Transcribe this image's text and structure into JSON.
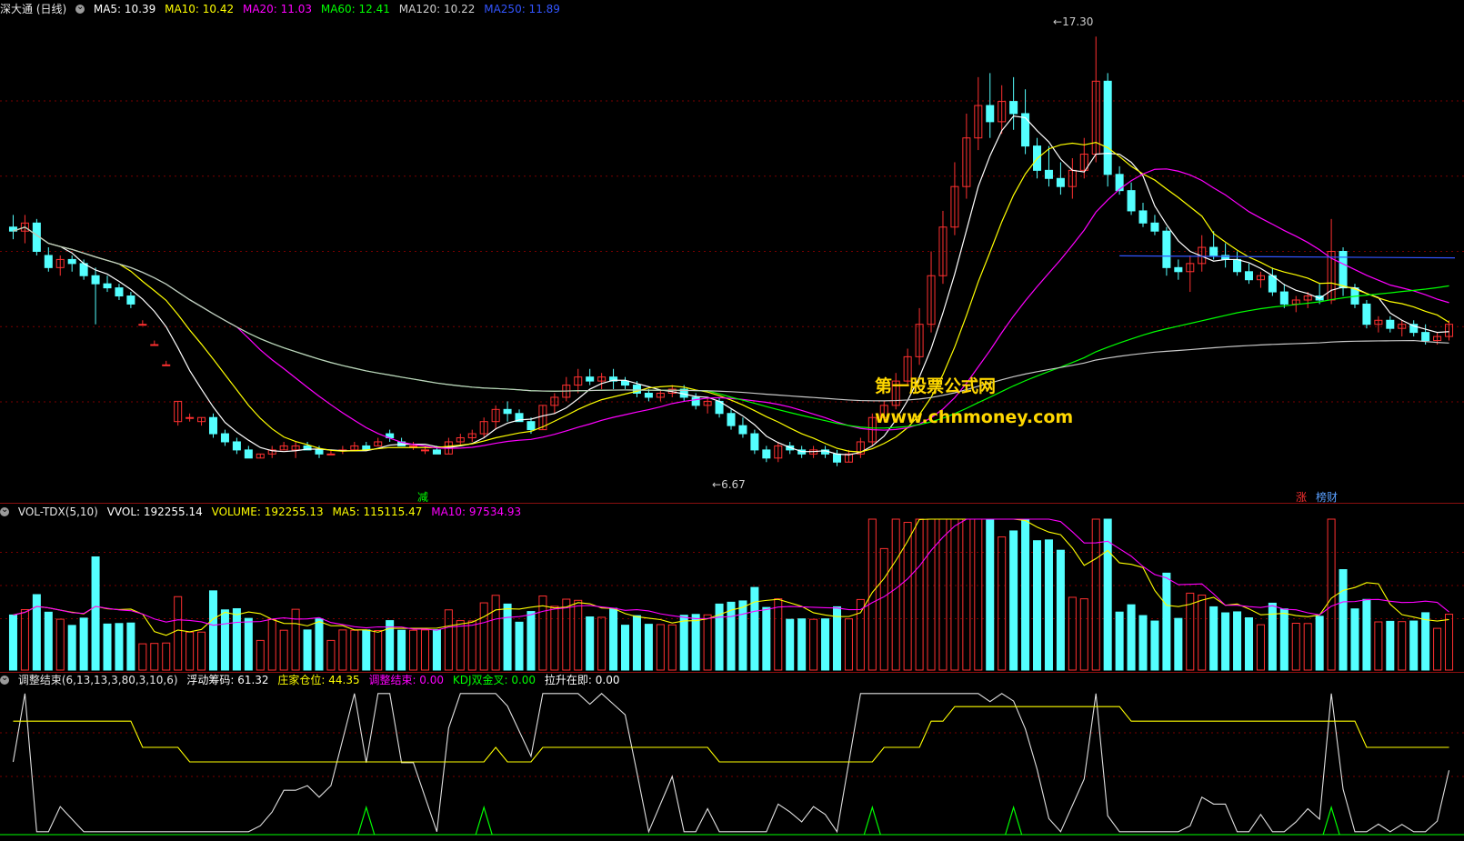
{
  "main_panel": {
    "title": "深大通 (日线)",
    "ma_labels": [
      {
        "text": "MA5: 10.39",
        "color": "#ffffff"
      },
      {
        "text": "MA10: 10.42",
        "color": "#ffff00"
      },
      {
        "text": "MA20: 11.03",
        "color": "#ff00ff"
      },
      {
        "text": "MA60: 12.41",
        "color": "#00ff00"
      },
      {
        "text": "MA120: 10.22",
        "color": "#d0d0d0"
      },
      {
        "text": "MA250: 11.89",
        "color": "#3355ff"
      }
    ],
    "high_label": "17.30",
    "low_label": "6.67",
    "marker_jian": "减",
    "marker_zhang": "涨",
    "marker_bangcai": "榜财",
    "watermark_cn": "第一股票公式网",
    "watermark_url": "www.chnmoney.com"
  },
  "volume_panel": {
    "title": "VOL-TDX(5,10)",
    "labels": [
      {
        "text": "VVOL: 192255.14",
        "color": "#ffffff"
      },
      {
        "text": "VOLUME: 192255.13",
        "color": "#ffff00"
      },
      {
        "text": "MA5: 115115.47",
        "color": "#ffff00"
      },
      {
        "text": "MA10: 97534.93",
        "color": "#ff00ff"
      }
    ]
  },
  "indicator_panel": {
    "title": "调整结束(6,13,13,3,80,3,10,6)",
    "labels": [
      {
        "text": "浮动筹码: 61.32",
        "color": "#ffffff"
      },
      {
        "text": "庄家仓位: 44.35",
        "color": "#ffff00"
      },
      {
        "text": "调整结束: 0.00",
        "color": "#ff00ff"
      },
      {
        "text": "KDJ双金叉: 0.00",
        "color": "#00ff00"
      },
      {
        "text": "拉升在即: 0.00",
        "color": "#ffffff"
      }
    ]
  },
  "colors": {
    "up": "#ff3030",
    "down": "#54ffff",
    "grid": "#7a0000",
    "ma5": "#ffffff",
    "ma10": "#ffff00",
    "ma20": "#ff00ff",
    "ma60": "#00ff00",
    "ma120": "#c8c8c8",
    "ma250": "#3355ff"
  },
  "chart_data": [
    {
      "type": "candlestick",
      "title": "深大通 (日线)",
      "ylim": [
        6.2,
        17.8
      ],
      "series_ohlc": [
        [
          12.6,
          12.9,
          12.3,
          12.5
        ],
        [
          12.5,
          12.9,
          12.2,
          12.7
        ],
        [
          12.7,
          12.8,
          11.9,
          12.0
        ],
        [
          11.9,
          12.1,
          11.5,
          11.6
        ],
        [
          11.6,
          11.9,
          11.4,
          11.8
        ],
        [
          11.8,
          11.9,
          11.5,
          11.7
        ],
        [
          11.7,
          11.8,
          11.3,
          11.4
        ],
        [
          11.4,
          11.6,
          10.2,
          11.2
        ],
        [
          11.2,
          11.4,
          11.0,
          11.1
        ],
        [
          11.1,
          11.2,
          10.8,
          10.9
        ],
        [
          10.9,
          11.0,
          10.6,
          10.7
        ],
        [
          10.2,
          10.3,
          10.2,
          10.2
        ],
        [
          9.7,
          9.8,
          9.7,
          9.7
        ],
        [
          9.2,
          9.3,
          9.2,
          9.2
        ],
        [
          7.8,
          8.3,
          7.7,
          8.3
        ],
        [
          7.9,
          8.0,
          7.8,
          7.9
        ],
        [
          7.8,
          7.9,
          7.7,
          7.9
        ],
        [
          7.9,
          8.0,
          7.4,
          7.5
        ],
        [
          7.5,
          7.6,
          7.2,
          7.3
        ],
        [
          7.3,
          7.4,
          7.0,
          7.1
        ],
        [
          7.1,
          7.2,
          6.9,
          6.9
        ],
        [
          6.9,
          7.0,
          6.9,
          7.0
        ],
        [
          7.0,
          7.2,
          6.9,
          7.1
        ],
        [
          7.1,
          7.3,
          7.1,
          7.2
        ],
        [
          7.1,
          7.3,
          6.9,
          7.2
        ],
        [
          7.2,
          7.3,
          7.1,
          7.1
        ],
        [
          7.1,
          7.2,
          6.9,
          7.0
        ],
        [
          7.0,
          7.1,
          7.0,
          7.0
        ],
        [
          7.1,
          7.2,
          7.0,
          7.1
        ],
        [
          7.1,
          7.3,
          7.1,
          7.2
        ],
        [
          7.2,
          7.3,
          7.1,
          7.1
        ],
        [
          7.2,
          7.4,
          7.2,
          7.3
        ],
        [
          7.5,
          7.6,
          7.3,
          7.4
        ],
        [
          7.3,
          7.4,
          7.2,
          7.2
        ],
        [
          7.2,
          7.3,
          7.1,
          7.2
        ],
        [
          7.1,
          7.2,
          7.0,
          7.1
        ],
        [
          7.1,
          7.2,
          7.0,
          7.0
        ],
        [
          7.0,
          7.4,
          7.0,
          7.3
        ],
        [
          7.3,
          7.5,
          7.2,
          7.4
        ],
        [
          7.4,
          7.6,
          7.3,
          7.5
        ],
        [
          7.5,
          7.9,
          7.4,
          7.8
        ],
        [
          7.8,
          8.2,
          7.6,
          8.1
        ],
        [
          8.1,
          8.3,
          7.8,
          8.0
        ],
        [
          8.0,
          8.1,
          7.8,
          7.8
        ],
        [
          7.8,
          7.9,
          7.5,
          7.6
        ],
        [
          7.6,
          8.2,
          7.6,
          8.2
        ],
        [
          8.2,
          8.5,
          8.0,
          8.4
        ],
        [
          8.4,
          8.9,
          8.3,
          8.7
        ],
        [
          8.7,
          9.1,
          8.5,
          8.9
        ],
        [
          8.9,
          9.1,
          8.7,
          8.8
        ],
        [
          8.8,
          9.0,
          8.6,
          8.9
        ],
        [
          8.9,
          9.1,
          8.6,
          8.8
        ],
        [
          8.8,
          8.9,
          8.6,
          8.7
        ],
        [
          8.7,
          8.8,
          8.4,
          8.5
        ],
        [
          8.5,
          8.6,
          8.3,
          8.4
        ],
        [
          8.4,
          8.6,
          8.3,
          8.5
        ],
        [
          8.5,
          8.7,
          8.4,
          8.6
        ],
        [
          8.6,
          8.7,
          8.3,
          8.4
        ],
        [
          8.4,
          8.5,
          8.1,
          8.2
        ],
        [
          8.2,
          8.4,
          8.0,
          8.3
        ],
        [
          8.3,
          8.4,
          7.9,
          8.0
        ],
        [
          8.0,
          8.1,
          7.6,
          7.7
        ],
        [
          7.7,
          7.9,
          7.4,
          7.5
        ],
        [
          7.5,
          7.6,
          7.0,
          7.1
        ],
        [
          7.1,
          7.2,
          6.8,
          6.9
        ],
        [
          6.9,
          7.3,
          6.8,
          7.2
        ],
        [
          7.2,
          7.3,
          7.0,
          7.1
        ],
        [
          7.1,
          7.2,
          6.9,
          7.0
        ],
        [
          7.0,
          7.2,
          6.9,
          7.1
        ],
        [
          7.1,
          7.2,
          6.9,
          7.0
        ],
        [
          7.0,
          7.1,
          6.7,
          6.8
        ],
        [
          6.8,
          7.1,
          6.8,
          7.0
        ],
        [
          7.0,
          7.4,
          6.9,
          7.3
        ],
        [
          7.3,
          8.0,
          7.2,
          7.9
        ],
        [
          7.9,
          8.3,
          7.8,
          8.2
        ],
        [
          8.2,
          9.0,
          8.1,
          8.8
        ],
        [
          8.8,
          9.6,
          8.7,
          9.4
        ],
        [
          9.4,
          10.6,
          9.2,
          10.2
        ],
        [
          10.2,
          12.0,
          10.0,
          11.4
        ],
        [
          11.4,
          13.0,
          11.2,
          12.6
        ],
        [
          12.6,
          14.2,
          12.4,
          13.6
        ],
        [
          13.6,
          15.4,
          13.3,
          14.8
        ],
        [
          14.8,
          16.3,
          14.5,
          15.6
        ],
        [
          15.6,
          16.4,
          14.8,
          15.2
        ],
        [
          15.2,
          16.1,
          14.9,
          15.7
        ],
        [
          15.7,
          16.3,
          15.0,
          15.4
        ],
        [
          15.4,
          16.0,
          14.4,
          14.6
        ],
        [
          14.6,
          14.8,
          13.8,
          14.0
        ],
        [
          14.0,
          14.6,
          13.6,
          13.8
        ],
        [
          13.8,
          14.2,
          13.4,
          13.6
        ],
        [
          13.6,
          14.3,
          13.3,
          14.0
        ],
        [
          14.0,
          14.8,
          13.8,
          14.4
        ],
        [
          14.4,
          17.3,
          14.2,
          16.2
        ],
        [
          16.2,
          16.4,
          13.6,
          13.9
        ],
        [
          13.9,
          14.1,
          13.4,
          13.5
        ],
        [
          13.5,
          13.7,
          12.9,
          13.0
        ],
        [
          13.0,
          13.2,
          12.6,
          12.7
        ],
        [
          12.7,
          12.9,
          12.4,
          12.5
        ],
        [
          12.5,
          12.6,
          11.4,
          11.6
        ],
        [
          11.6,
          11.8,
          11.3,
          11.5
        ],
        [
          11.5,
          11.9,
          11.0,
          11.7
        ],
        [
          11.7,
          12.4,
          11.5,
          12.1
        ],
        [
          12.1,
          12.5,
          11.8,
          11.9
        ],
        [
          11.9,
          12.2,
          11.6,
          11.8
        ],
        [
          11.8,
          12.0,
          11.4,
          11.5
        ],
        [
          11.5,
          11.7,
          11.2,
          11.3
        ],
        [
          11.3,
          11.5,
          11.1,
          11.4
        ],
        [
          11.4,
          11.6,
          10.9,
          11.0
        ],
        [
          11.0,
          11.2,
          10.6,
          10.7
        ],
        [
          10.7,
          10.9,
          10.5,
          10.8
        ],
        [
          10.8,
          11.0,
          10.6,
          10.9
        ],
        [
          10.9,
          11.2,
          10.7,
          10.8
        ],
        [
          10.8,
          12.8,
          10.7,
          12.0
        ],
        [
          12.0,
          12.1,
          10.9,
          11.1
        ],
        [
          11.1,
          11.2,
          10.6,
          10.7
        ],
        [
          10.7,
          10.8,
          10.1,
          10.2
        ],
        [
          10.2,
          10.4,
          10.0,
          10.3
        ],
        [
          10.3,
          10.4,
          10.0,
          10.1
        ],
        [
          10.1,
          10.3,
          9.9,
          10.2
        ],
        [
          10.2,
          10.3,
          9.9,
          10.0
        ],
        [
          10.0,
          10.2,
          9.7,
          9.8
        ],
        [
          9.8,
          10.0,
          9.7,
          9.9
        ],
        [
          9.9,
          10.3,
          9.8,
          10.2
        ]
      ],
      "ma_period_lengths": [
        5,
        10,
        20,
        60,
        120,
        250
      ]
    },
    {
      "type": "bar",
      "title": "VOL-TDX(5,10)",
      "ylim": [
        0,
        320000
      ]
    },
    {
      "type": "line",
      "title": "调整结束(6,13,13,3,80,3,10,6)",
      "ylim": [
        0,
        100
      ]
    }
  ]
}
